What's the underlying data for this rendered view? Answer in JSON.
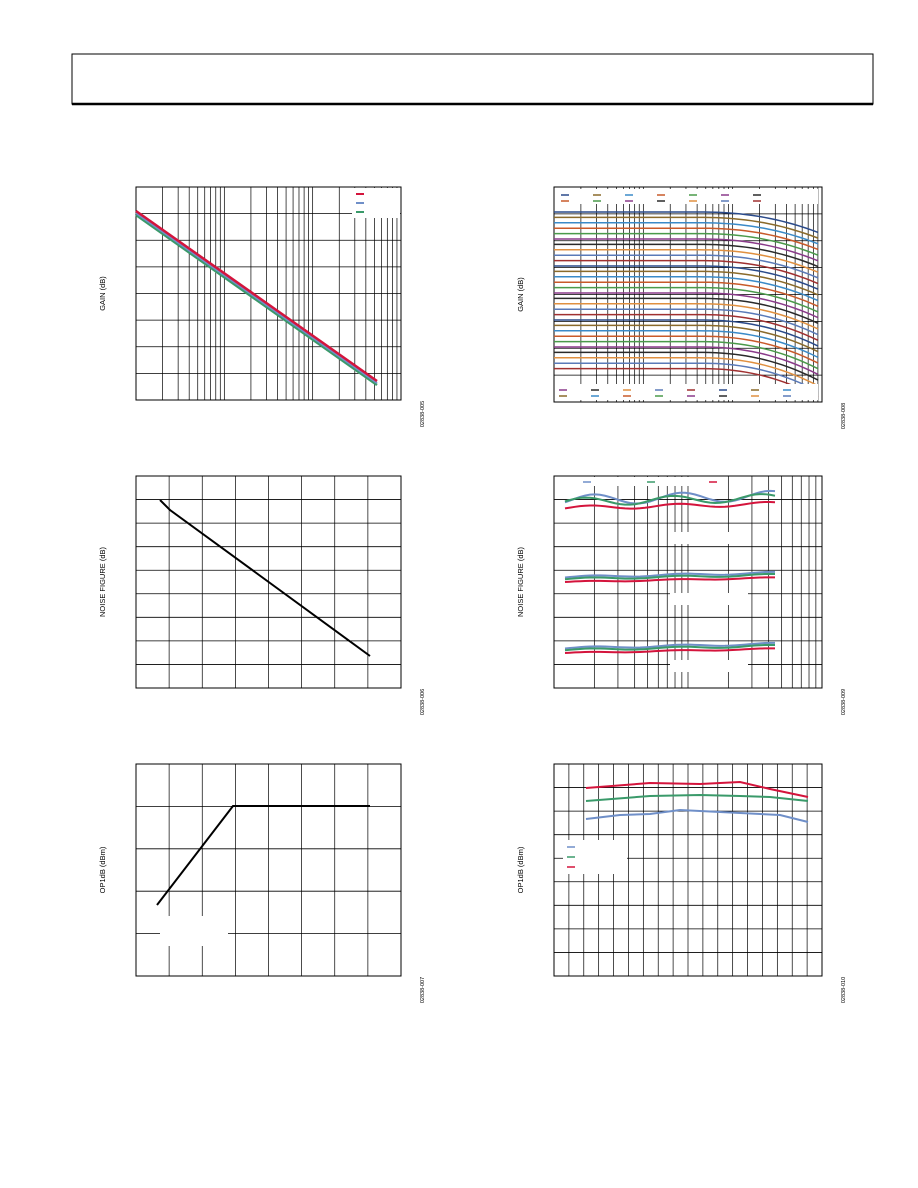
{
  "figures": [
    {
      "y_label": "GAIN (dB)",
      "figure_id": "02838-005"
    },
    {
      "y_label": "GAIN (dB)",
      "figure_id": "02838-008"
    },
    {
      "y_label": "NOISE FIGURE (dB)",
      "figure_id": "02838-006"
    },
    {
      "y_label": "NOISE FIGURE (dB)",
      "figure_id": "02838-009"
    },
    {
      "y_label": "OP1dB (dBm)",
      "figure_id": "02838-007"
    },
    {
      "y_label": "OP1dB (dBm)",
      "figure_id": "02838-010"
    }
  ]
}
